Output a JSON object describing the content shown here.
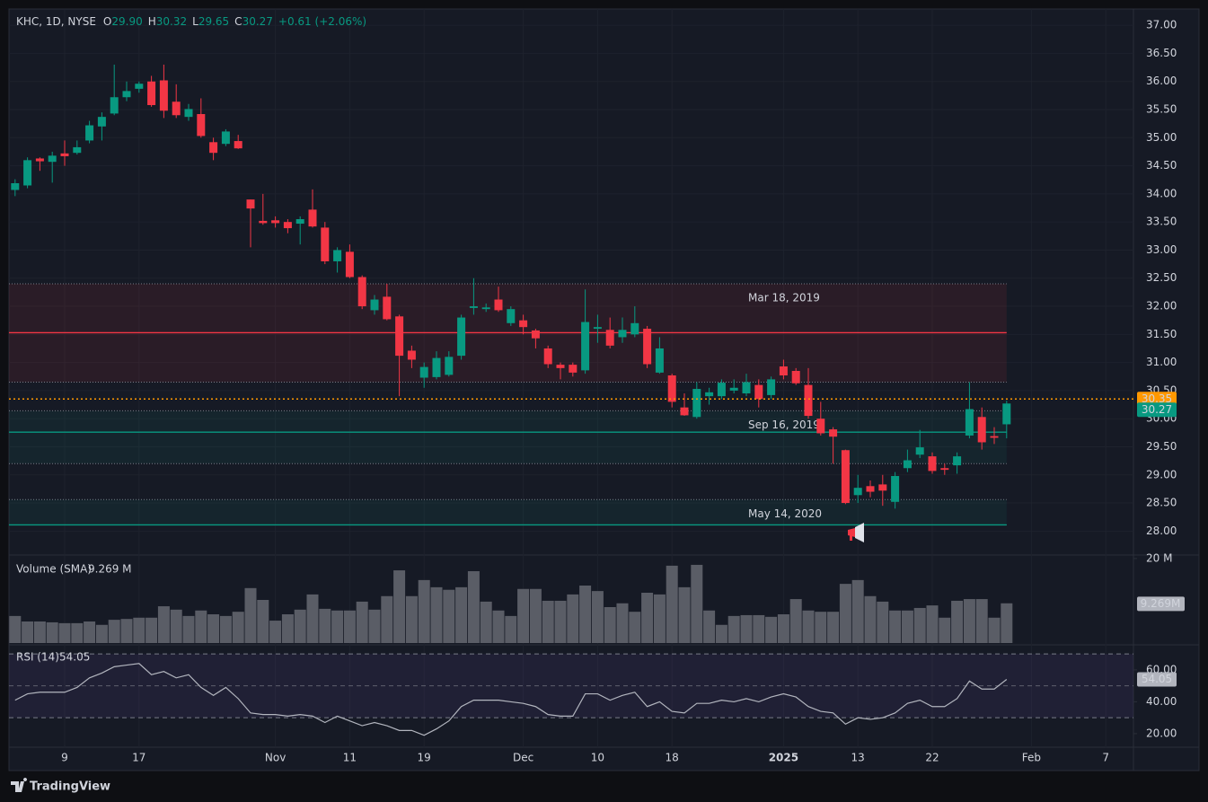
{
  "chart_data": [
    {
      "type": "candlestick",
      "header": {
        "symbol": "KHC, 1D, NYSE",
        "ohlc": [
          {
            "key": "O",
            "value": "29.90"
          },
          {
            "key": "H",
            "value": "30.32"
          },
          {
            "key": "L",
            "value": "29.65"
          },
          {
            "key": "C",
            "value": "30.27"
          }
        ],
        "change": "+0.61 (+2.06%)"
      },
      "categories": [
        null,
        null,
        null,
        null,
        "9",
        null,
        null,
        null,
        null,
        null,
        "17",
        null,
        null,
        null,
        null,
        null,
        null,
        null,
        null,
        null,
        null,
        "Nov",
        null,
        null,
        null,
        null,
        null,
        "11",
        null,
        null,
        null,
        null,
        null,
        "19",
        null,
        null,
        null,
        null,
        null,
        null,
        null,
        "Dec",
        null,
        null,
        null,
        null,
        null,
        "10",
        null,
        null,
        null,
        null,
        null,
        "18",
        null,
        null,
        null,
        null,
        null,
        null,
        null,
        null,
        "2025",
        null,
        null,
        null,
        null,
        null,
        "13",
        null,
        null,
        null,
        null,
        null,
        "22",
        null,
        null,
        null,
        null,
        null,
        null,
        null,
        "Feb",
        null,
        null,
        null,
        null,
        null,
        "7"
      ],
      "open": [
        34.07,
        34.15,
        34.63,
        34.57,
        34.72,
        34.73,
        34.95,
        35.2,
        35.43,
        35.72,
        35.87,
        36.0,
        36.02,
        35.64,
        35.37,
        35.42,
        34.92,
        34.89,
        34.94,
        33.9,
        33.52,
        33.53,
        33.5,
        33.47,
        33.72,
        33.4,
        32.8,
        32.97,
        32.52,
        31.93,
        32.17,
        31.82,
        31.21,
        30.73,
        30.74,
        30.78,
        31.12,
        31.97,
        31.95,
        32.12,
        31.7,
        31.75,
        31.57,
        31.25,
        30.96,
        30.96,
        30.86,
        31.6,
        31.58,
        31.45,
        31.5,
        31.6,
        30.82,
        30.77,
        30.2,
        30.03,
        30.4,
        30.4,
        30.5,
        30.45,
        30.6,
        30.42,
        30.93,
        30.85,
        30.6,
        30.0,
        29.81,
        29.44,
        28.64,
        28.8,
        28.83,
        28.52,
        29.12,
        29.36,
        29.33,
        29.12,
        29.17,
        29.7,
        30.03,
        29.69,
        29.9,
        null,
        null,
        null,
        null,
        null,
        null,
        null,
        null
      ],
      "high": [
        34.26,
        34.65,
        34.65,
        34.75,
        34.95,
        34.95,
        35.3,
        35.45,
        36.3,
        36.0,
        36.0,
        36.1,
        36.3,
        35.95,
        35.6,
        35.7,
        35.0,
        35.15,
        35.05,
        33.9,
        34.0,
        33.6,
        33.55,
        33.6,
        34.08,
        33.5,
        33.05,
        33.1,
        32.55,
        32.2,
        32.4,
        31.85,
        31.3,
        31.0,
        31.2,
        31.2,
        31.85,
        32.5,
        32.05,
        32.35,
        32.0,
        31.85,
        31.6,
        31.3,
        31.0,
        31.0,
        32.3,
        31.85,
        31.8,
        31.8,
        32.0,
        31.65,
        31.45,
        30.8,
        30.45,
        30.65,
        30.55,
        30.7,
        30.7,
        30.8,
        30.7,
        30.75,
        31.05,
        30.9,
        30.9,
        30.3,
        29.85,
        29.45,
        29.0,
        28.9,
        29.0,
        29.05,
        29.45,
        29.8,
        29.4,
        29.2,
        29.4,
        30.65,
        30.2,
        29.85,
        30.32,
        null,
        null,
        null,
        null,
        null,
        null,
        null,
        null
      ],
      "low": [
        33.96,
        34.1,
        34.41,
        34.2,
        34.5,
        34.7,
        34.9,
        34.95,
        35.4,
        35.65,
        35.8,
        35.55,
        35.35,
        35.35,
        35.3,
        35.0,
        34.6,
        34.85,
        34.8,
        33.05,
        33.45,
        33.4,
        33.3,
        33.1,
        33.4,
        32.75,
        32.6,
        32.5,
        31.95,
        31.85,
        31.75,
        30.4,
        30.9,
        30.55,
        30.7,
        30.75,
        31.05,
        31.85,
        31.9,
        31.9,
        31.65,
        31.5,
        31.25,
        30.9,
        30.7,
        30.75,
        30.8,
        31.35,
        31.25,
        31.35,
        31.45,
        30.9,
        30.8,
        30.2,
        30.05,
        30.0,
        30.25,
        30.35,
        30.45,
        30.4,
        30.2,
        30.35,
        30.7,
        30.6,
        30.0,
        29.7,
        29.2,
        28.48,
        28.5,
        28.6,
        28.45,
        28.4,
        29.05,
        29.3,
        29.02,
        29.0,
        29.02,
        29.65,
        29.45,
        29.55,
        29.65,
        null,
        null,
        null,
        null,
        null,
        null,
        null,
        null
      ],
      "close": [
        34.19,
        34.6,
        34.58,
        34.68,
        34.67,
        34.83,
        35.22,
        35.37,
        35.72,
        35.83,
        35.96,
        35.58,
        35.48,
        35.4,
        35.51,
        35.03,
        34.73,
        35.11,
        34.81,
        33.74,
        33.48,
        33.48,
        33.39,
        33.55,
        33.42,
        32.8,
        33.0,
        32.52,
        32.0,
        32.12,
        31.77,
        31.12,
        31.05,
        30.92,
        31.08,
        31.1,
        31.8,
        32.0,
        31.98,
        31.93,
        31.95,
        31.63,
        31.43,
        30.97,
        30.9,
        30.82,
        31.72,
        31.63,
        31.3,
        31.58,
        31.7,
        30.97,
        31.25,
        30.3,
        30.06,
        30.53,
        30.47,
        30.64,
        30.55,
        30.65,
        30.35,
        30.7,
        30.77,
        30.63,
        30.05,
        29.74,
        29.68,
        28.5,
        28.77,
        28.7,
        28.72,
        28.98,
        29.26,
        29.49,
        29.07,
        29.09,
        29.33,
        30.17,
        29.58,
        29.66,
        30.27,
        null,
        null,
        null,
        null,
        null,
        null,
        null,
        null
      ],
      "up_color": "#089981",
      "down_color": "#f23645",
      "ylim": [
        27.59,
        37.29
      ],
      "yticks": [
        {
          "value": 28,
          "label": "28.00"
        },
        {
          "value": 28.5,
          "label": "28.50"
        },
        {
          "value": 29,
          "label": "29.00"
        },
        {
          "value": 29.5,
          "label": "29.50"
        },
        {
          "value": 30,
          "label": "30.00"
        },
        {
          "value": 30.5,
          "label": "30.50"
        },
        {
          "value": 31,
          "label": "31.00"
        },
        {
          "value": 31.5,
          "label": "31.50"
        },
        {
          "value": 32,
          "label": "32.00"
        },
        {
          "value": 32.5,
          "label": "32.50"
        },
        {
          "value": 33,
          "label": "33.00"
        },
        {
          "value": 33.5,
          "label": "33.50"
        },
        {
          "value": 34,
          "label": "34.00"
        },
        {
          "value": 34.5,
          "label": "34.50"
        },
        {
          "value": 35,
          "label": "35.00"
        },
        {
          "value": 35.5,
          "label": "35.50"
        },
        {
          "value": 36,
          "label": "36.00"
        },
        {
          "value": 36.5,
          "label": "36.50"
        },
        {
          "value": 37,
          "label": "37.00"
        }
      ],
      "grid": true,
      "zones": [
        {
          "label": "Mar 18, 2019",
          "top": 32.4,
          "bottom": 30.65,
          "level": 31.53,
          "color": "#f23645"
        },
        {
          "label": "Sep 16, 2019",
          "top": 30.14,
          "bottom": 29.2,
          "level": 29.76,
          "color": "#089981"
        },
        {
          "label": "May 14, 2020",
          "top": 28.56,
          "bottom": 28.11,
          "level": 28.11,
          "color": "#089981"
        }
      ],
      "price_line": {
        "value": 30.35,
        "color": "#ff9800"
      }
    },
    {
      "type": "bar",
      "title": "Volume (SMA)",
      "sma": 9.269,
      "sma_label": "9.269 M",
      "sma_tag": "9.269M",
      "color": "#5a5d66",
      "values": [
        6.4,
        5.1,
        5.1,
        4.9,
        4.7,
        4.7,
        5.1,
        4.3,
        5.5,
        5.7,
        6.0,
        6.0,
        8.7,
        7.9,
        6.4,
        7.7,
        6.8,
        6.4,
        7.4,
        13.0,
        10.2,
        5.3,
        6.8,
        7.9,
        11.5,
        8.1,
        7.7,
        7.7,
        9.8,
        7.9,
        11.1,
        17.2,
        11.1,
        14.9,
        13.2,
        12.6,
        13.2,
        17.0,
        9.8,
        7.7,
        6.4,
        12.8,
        12.8,
        10.0,
        10.0,
        11.5,
        13.6,
        12.3,
        8.5,
        9.4,
        7.4,
        11.9,
        11.5,
        18.3,
        13.2,
        18.5,
        7.7,
        4.3,
        6.4,
        6.6,
        6.6,
        6.2,
        6.8,
        10.4,
        7.7,
        7.4,
        7.4,
        14.0,
        14.9,
        11.1,
        9.8,
        7.7,
        7.7,
        8.3,
        8.9,
        6.0,
        10.0,
        10.4,
        10.4,
        6.0,
        9.4,
        null,
        null,
        null,
        null,
        null,
        null,
        null,
        null
      ],
      "ylim": [
        0,
        20.4
      ],
      "yticks": [
        {
          "value": 20,
          "label": "20 M"
        }
      ]
    },
    {
      "type": "line",
      "title": "RSI (14)",
      "color": "#b2b5be",
      "band_color": "#7e57c2",
      "values": [
        41,
        45,
        46,
        46,
        46,
        49,
        55,
        58,
        62,
        63,
        64,
        57,
        59,
        55,
        57,
        49,
        44,
        49,
        42,
        33,
        32,
        32,
        31,
        32,
        31,
        27,
        31,
        28,
        25,
        27,
        25,
        22,
        22,
        19,
        23,
        28,
        37,
        41,
        41,
        41,
        40,
        39,
        37,
        32,
        31,
        31,
        45,
        45,
        41,
        44,
        46,
        37,
        40,
        34,
        33,
        39,
        39,
        41,
        40,
        42,
        40,
        43,
        45,
        43,
        37,
        34,
        33,
        26,
        30,
        29,
        30,
        33,
        39,
        41,
        37,
        37,
        42,
        53,
        48,
        48,
        54.05,
        null,
        null,
        null,
        null,
        null,
        null,
        null,
        null
      ],
      "bands": [
        70,
        30
      ],
      "midline": 50,
      "ylim": [
        11.5,
        74.6
      ],
      "yticks": [
        {
          "value": 20,
          "label": "20.00"
        },
        {
          "value": 40,
          "label": "40.00"
        },
        {
          "value": 60,
          "label": "60.00"
        }
      ]
    }
  ],
  "branding": "TradingView"
}
